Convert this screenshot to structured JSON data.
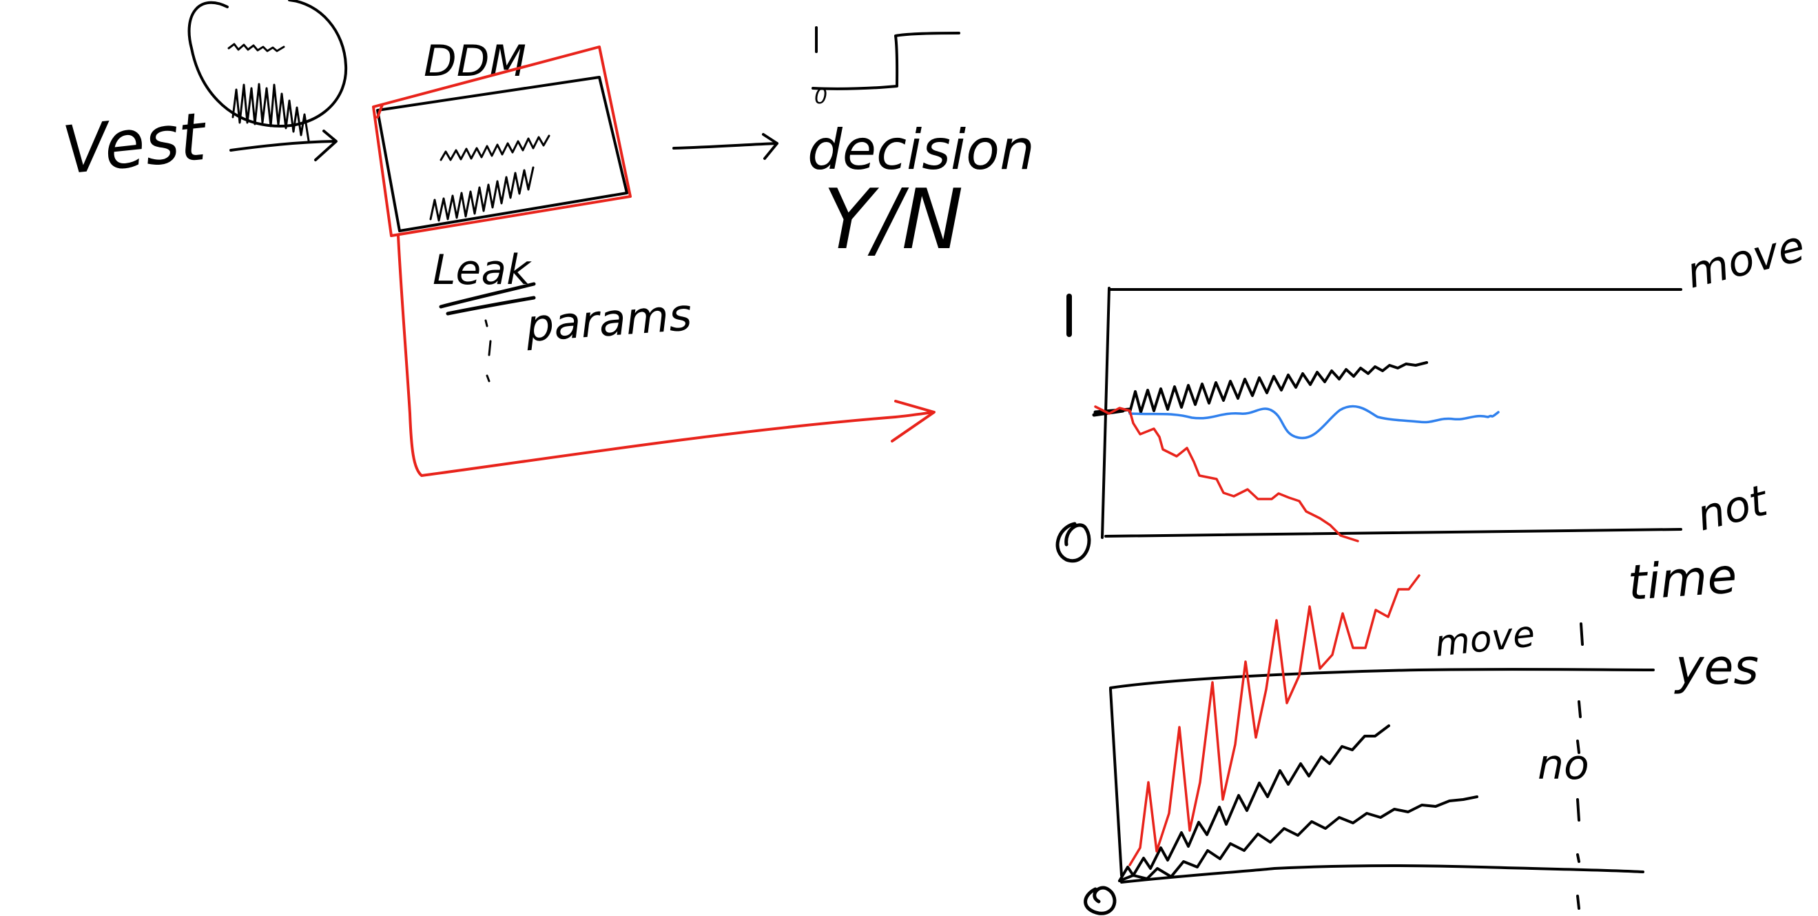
{
  "app": {
    "canvas_background": "#ffffff"
  },
  "colors": {
    "ink_black": "#000000",
    "ink_red": "#e8231b",
    "ink_blue": "#2f80ed"
  },
  "labels": {
    "input": "Vest",
    "model": "DDM",
    "leak": "Leak",
    "params": "params",
    "decision": "decision",
    "decision_options": "Y/N",
    "decision_axis_top": "1",
    "decision_axis_bottom": "0",
    "upper_plot_y_top": "1",
    "upper_plot_y_bottom": "0",
    "upper_bound": "move",
    "lower_bound": "not",
    "time_axis": "time",
    "lower_plot_move": "move",
    "lower_plot_yes": "yes",
    "lower_plot_no": "no",
    "lower_plot_y_bottom": "0"
  }
}
